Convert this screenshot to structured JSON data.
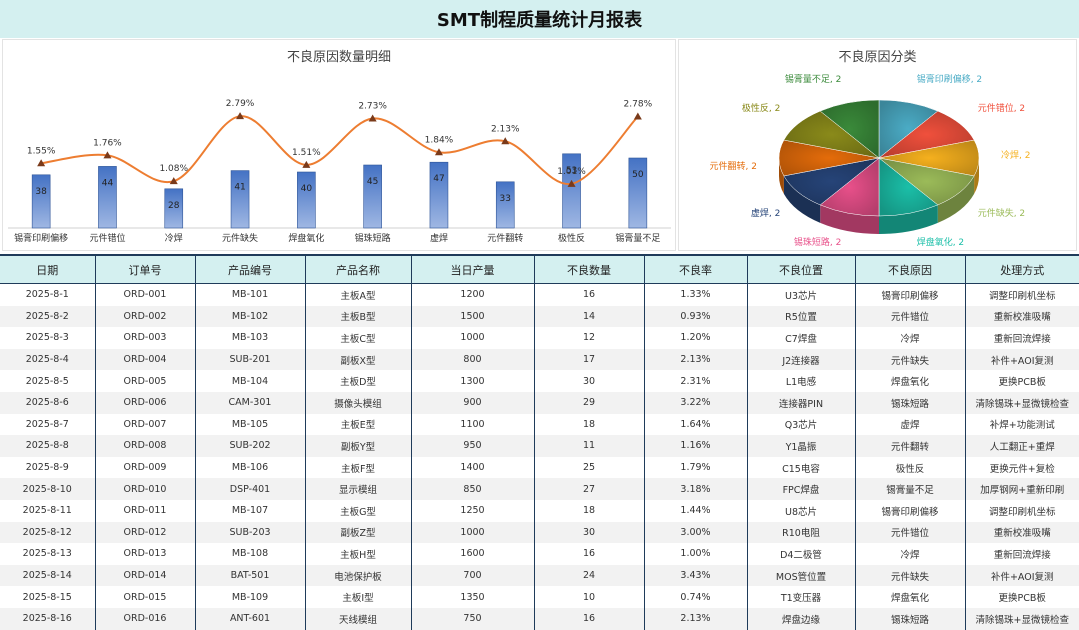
{
  "report": {
    "title": "SMT制程质量统计月报表"
  },
  "colors": {
    "header_bg": "#d4f0f0",
    "bar": "#4f81bd",
    "line": "#ed7d31",
    "grid_border": "#1f3b5a"
  },
  "chart_data": [
    {
      "type": "bar",
      "title": "不良原因数量明细",
      "categories": [
        "锡膏印刷偏移",
        "元件错位",
        "冷焊",
        "元件缺失",
        "焊盘氧化",
        "锡珠短路",
        "虚焊",
        "元件翻转",
        "极性反",
        "锡膏量不足"
      ],
      "series": [
        {
          "values": [
            38,
            44,
            28,
            41,
            40,
            45,
            47,
            33,
            53,
            50
          ]
        },
        {
          "values": [
            1.55,
            1.76,
            1.08,
            2.79,
            1.51,
            2.73,
            1.84,
            2.13,
            1.01,
            2.78
          ],
          "labels": [
            "1.55%",
            "1.76%",
            "1.08%",
            "2.79%",
            "1.51%",
            "2.73%",
            "1.84%",
            "2.13%",
            "1.01%",
            "2.78%"
          ]
        }
      ],
      "ylim": [
        0,
        60
      ]
    },
    {
      "type": "pie",
      "title": "不良原因分类",
      "slices": [
        {
          "label": "锡膏印刷偏移",
          "value": 2,
          "color": "#4bacc6"
        },
        {
          "label": "元件错位",
          "value": 2,
          "color": "#f0503c"
        },
        {
          "label": "冷焊",
          "value": 2,
          "color": "#f5b01e"
        },
        {
          "label": "元件缺失",
          "value": 2,
          "color": "#9bbb59"
        },
        {
          "label": "焊盘氧化",
          "value": 2,
          "color": "#1bbfa8"
        },
        {
          "label": "锡珠短路",
          "value": 2,
          "color": "#e8508a"
        },
        {
          "label": "虚焊",
          "value": 2,
          "color": "#264478"
        },
        {
          "label": "元件翻转",
          "value": 2,
          "color": "#e46c0a"
        },
        {
          "label": "极性反",
          "value": 2,
          "color": "#8a8a1a"
        },
        {
          "label": "锡膏量不足",
          "value": 2,
          "color": "#3a8a3a"
        }
      ],
      "label_values": "2"
    }
  ],
  "table": {
    "headers": [
      "日期",
      "订单号",
      "产品编号",
      "产品名称",
      "当日产量",
      "不良数量",
      "不良率",
      "不良位置",
      "不良原因",
      "处理方式"
    ],
    "rows": [
      [
        "2025-8-1",
        "ORD-001",
        "MB-101",
        "主板A型",
        "1200",
        "16",
        "1.33%",
        "U3芯片",
        "锡膏印刷偏移",
        "调整印刷机坐标"
      ],
      [
        "2025-8-2",
        "ORD-002",
        "MB-102",
        "主板B型",
        "1500",
        "14",
        "0.93%",
        "R5位置",
        "元件错位",
        "重新校准吸嘴"
      ],
      [
        "2025-8-3",
        "ORD-003",
        "MB-103",
        "主板C型",
        "1000",
        "12",
        "1.20%",
        "C7焊盘",
        "冷焊",
        "重新回流焊接"
      ],
      [
        "2025-8-4",
        "ORD-004",
        "SUB-201",
        "副板X型",
        "800",
        "17",
        "2.13%",
        "J2连接器",
        "元件缺失",
        "补件+AOI复测"
      ],
      [
        "2025-8-5",
        "ORD-005",
        "MB-104",
        "主板D型",
        "1300",
        "30",
        "2.31%",
        "L1电感",
        "焊盘氧化",
        "更换PCB板"
      ],
      [
        "2025-8-6",
        "ORD-006",
        "CAM-301",
        "摄像头模组",
        "900",
        "29",
        "3.22%",
        "连接器PIN",
        "锡珠短路",
        "清除锡珠+显微镜检查"
      ],
      [
        "2025-8-7",
        "ORD-007",
        "MB-105",
        "主板E型",
        "1100",
        "18",
        "1.64%",
        "Q3芯片",
        "虚焊",
        "补焊+功能测试"
      ],
      [
        "2025-8-8",
        "ORD-008",
        "SUB-202",
        "副板Y型",
        "950",
        "11",
        "1.16%",
        "Y1晶振",
        "元件翻转",
        "人工翻正+重焊"
      ],
      [
        "2025-8-9",
        "ORD-009",
        "MB-106",
        "主板F型",
        "1400",
        "25",
        "1.79%",
        "C15电容",
        "极性反",
        "更换元件+复检"
      ],
      [
        "2025-8-10",
        "ORD-010",
        "DSP-401",
        "显示模组",
        "850",
        "27",
        "3.18%",
        "FPC焊盘",
        "锡膏量不足",
        "加厚钢网+重新印刷"
      ],
      [
        "2025-8-11",
        "ORD-011",
        "MB-107",
        "主板G型",
        "1250",
        "18",
        "1.44%",
        "U8芯片",
        "锡膏印刷偏移",
        "调整印刷机坐标"
      ],
      [
        "2025-8-12",
        "ORD-012",
        "SUB-203",
        "副板Z型",
        "1000",
        "30",
        "3.00%",
        "R10电阻",
        "元件错位",
        "重新校准吸嘴"
      ],
      [
        "2025-8-13",
        "ORD-013",
        "MB-108",
        "主板H型",
        "1600",
        "16",
        "1.00%",
        "D4二极管",
        "冷焊",
        "重新回流焊接"
      ],
      [
        "2025-8-14",
        "ORD-014",
        "BAT-501",
        "电池保护板",
        "700",
        "24",
        "3.43%",
        "MOS管位置",
        "元件缺失",
        "补件+AOI复测"
      ],
      [
        "2025-8-15",
        "ORD-015",
        "MB-109",
        "主板I型",
        "1350",
        "10",
        "0.74%",
        "T1变压器",
        "焊盘氧化",
        "更换PCB板"
      ],
      [
        "2025-8-16",
        "ORD-016",
        "ANT-601",
        "天线模组",
        "750",
        "16",
        "2.13%",
        "焊盘边缘",
        "锡珠短路",
        "清除锡珠+显微镜检查"
      ]
    ]
  }
}
